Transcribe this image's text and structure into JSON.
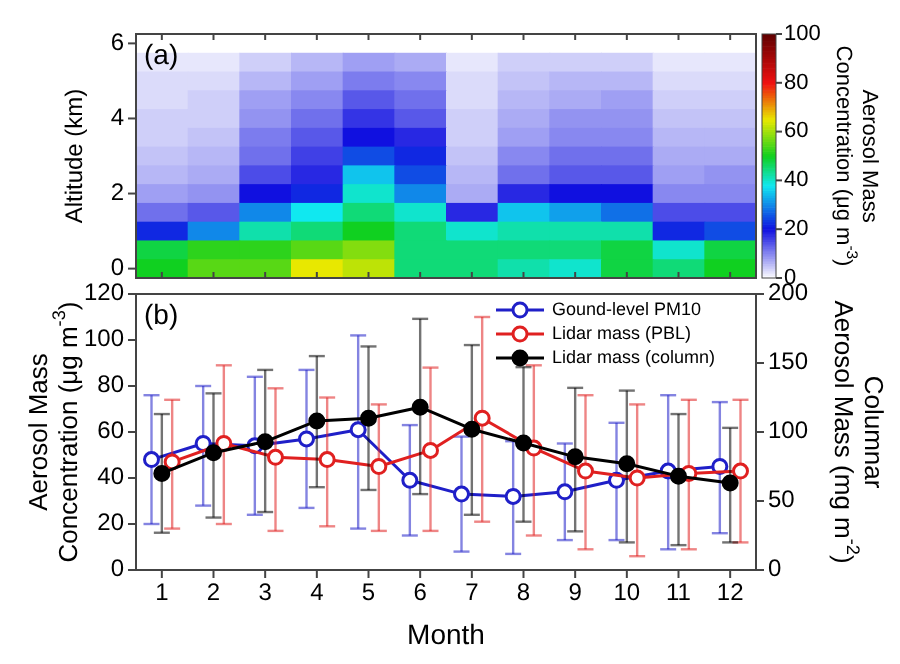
{
  "chart_data": [
    {
      "type": "heatmap",
      "title": "(a)",
      "ylabel": "Altitude (km)",
      "clabel": "Aerosol Mass\nConcentration (μg m$^{-3}$)",
      "categories": [
        null,
        null,
        null,
        null,
        null,
        null,
        null,
        null,
        null,
        null,
        null,
        null
      ],
      "y_categories": [
        "6",
        null,
        null,
        null,
        "4",
        null,
        null,
        null,
        "2",
        null,
        null,
        null,
        "0"
      ],
      "clim": [
        0,
        100
      ],
      "cticks": [
        0,
        20,
        40,
        60,
        80,
        100
      ],
      "tick_labels": "y",
      "cells": [
        [
          null,
          null,
          null,
          null,
          null,
          null,
          null,
          null,
          null,
          null,
          null,
          null
        ],
        [
          2,
          2,
          4,
          6,
          8,
          7,
          2,
          4,
          4,
          4,
          2,
          2
        ],
        [
          3,
          3,
          6,
          8,
          11,
          10,
          3,
          5,
          6,
          6,
          3,
          3
        ],
        [
          3,
          4,
          8,
          10,
          14,
          12,
          3,
          6,
          7,
          8,
          4,
          4
        ],
        [
          4,
          4,
          9,
          12,
          17,
          14,
          4,
          7,
          9,
          9,
          5,
          5
        ],
        [
          4,
          5,
          11,
          14,
          20,
          18,
          4,
          8,
          10,
          10,
          6,
          6
        ],
        [
          5,
          6,
          12,
          16,
          25,
          22,
          5,
          10,
          12,
          12,
          7,
          7
        ],
        [
          6,
          7,
          15,
          18,
          35,
          25,
          6,
          12,
          14,
          14,
          8,
          9
        ],
        [
          8,
          9,
          20,
          22,
          40,
          30,
          7,
          18,
          20,
          20,
          10,
          10
        ],
        [
          12,
          14,
          30,
          38,
          45,
          40,
          18,
          35,
          32,
          28,
          15,
          15
        ],
        [
          22,
          30,
          42,
          45,
          50,
          45,
          40,
          42,
          42,
          42,
          22,
          25
        ],
        [
          48,
          52,
          52,
          55,
          58,
          45,
          45,
          45,
          45,
          48,
          40,
          48
        ],
        [
          50,
          55,
          55,
          65,
          62,
          45,
          45,
          42,
          40,
          48,
          45,
          50
        ]
      ]
    },
    {
      "type": "line",
      "title": "(b)",
      "xlabel": "Month",
      "ylabel": "Aerosol Mass\nConcentration (μg m$^{-3}$)",
      "y2label": "Columnar\nAerosol Mass (mg m$^{-2}$)",
      "x": [
        1,
        2,
        3,
        4,
        5,
        6,
        7,
        8,
        9,
        10,
        11,
        12
      ],
      "xlim": [
        0.5,
        12.5
      ],
      "xticks": [
        1,
        2,
        3,
        4,
        5,
        6,
        7,
        8,
        9,
        10,
        11,
        12
      ],
      "ylim": [
        0,
        120
      ],
      "yticks": [
        0,
        20,
        40,
        60,
        80,
        100,
        120
      ],
      "y2lim": [
        0,
        200
      ],
      "y2ticks": [
        0,
        50,
        100,
        150,
        200
      ],
      "legend": "top right",
      "marker": "circle",
      "series": [
        {
          "name": "Gound-level PM10",
          "color": "#1f1fc8",
          "x": [
            0.8,
            1.8,
            2.8,
            3.8,
            4.8,
            5.8,
            6.8,
            7.8,
            8.8,
            9.8,
            10.8,
            11.8
          ],
          "values": [
            48,
            55,
            54,
            57,
            61,
            39,
            33,
            32,
            34,
            39,
            43,
            45
          ],
          "errors": [
            [
              20,
              76
            ],
            [
              28,
              80
            ],
            [
              24,
              84
            ],
            [
              27,
              87
            ],
            [
              18,
              102
            ],
            [
              15,
              63
            ],
            [
              8,
              58
            ],
            [
              7,
              56
            ],
            [
              13,
              55
            ],
            [
              13,
              64
            ],
            [
              9,
              76
            ],
            [
              16,
              73
            ]
          ]
        },
        {
          "name": "Lidar mass (PBL)",
          "color": "#e02020",
          "x": [
            1.2,
            2.2,
            3.2,
            4.2,
            5.2,
            6.2,
            7.2,
            8.2,
            9.2,
            10.2,
            11.2,
            12.2
          ],
          "values": [
            47,
            55,
            49,
            48,
            45,
            52,
            66,
            53,
            43,
            40,
            42,
            43
          ],
          "errors": [
            [
              18,
              74
            ],
            [
              20,
              89
            ],
            [
              17,
              79
            ],
            [
              19,
              75
            ],
            [
              17,
              72
            ],
            [
              17,
              88
            ],
            [
              21,
              110
            ],
            [
              15,
              89
            ],
            [
              9,
              76
            ],
            [
              6,
              72
            ],
            [
              9,
              74
            ],
            [
              12,
              74
            ]
          ]
        },
        {
          "name": "Lidar mass (column)",
          "color": "#000000",
          "axis": "y2",
          "values": [
            70,
            85,
            93,
            108,
            110,
            118,
            102,
            92,
            82,
            77,
            68,
            63
          ],
          "errors": [
            [
              27,
              113
            ],
            [
              38,
              128
            ],
            [
              42,
              145
            ],
            [
              60,
              155
            ],
            [
              58,
              162
            ],
            [
              55,
              182
            ],
            [
              40,
              163
            ],
            [
              35,
              147
            ],
            [
              28,
              132
            ],
            [
              20,
              130
            ],
            [
              18,
              113
            ],
            [
              20,
              103
            ]
          ]
        }
      ]
    }
  ]
}
